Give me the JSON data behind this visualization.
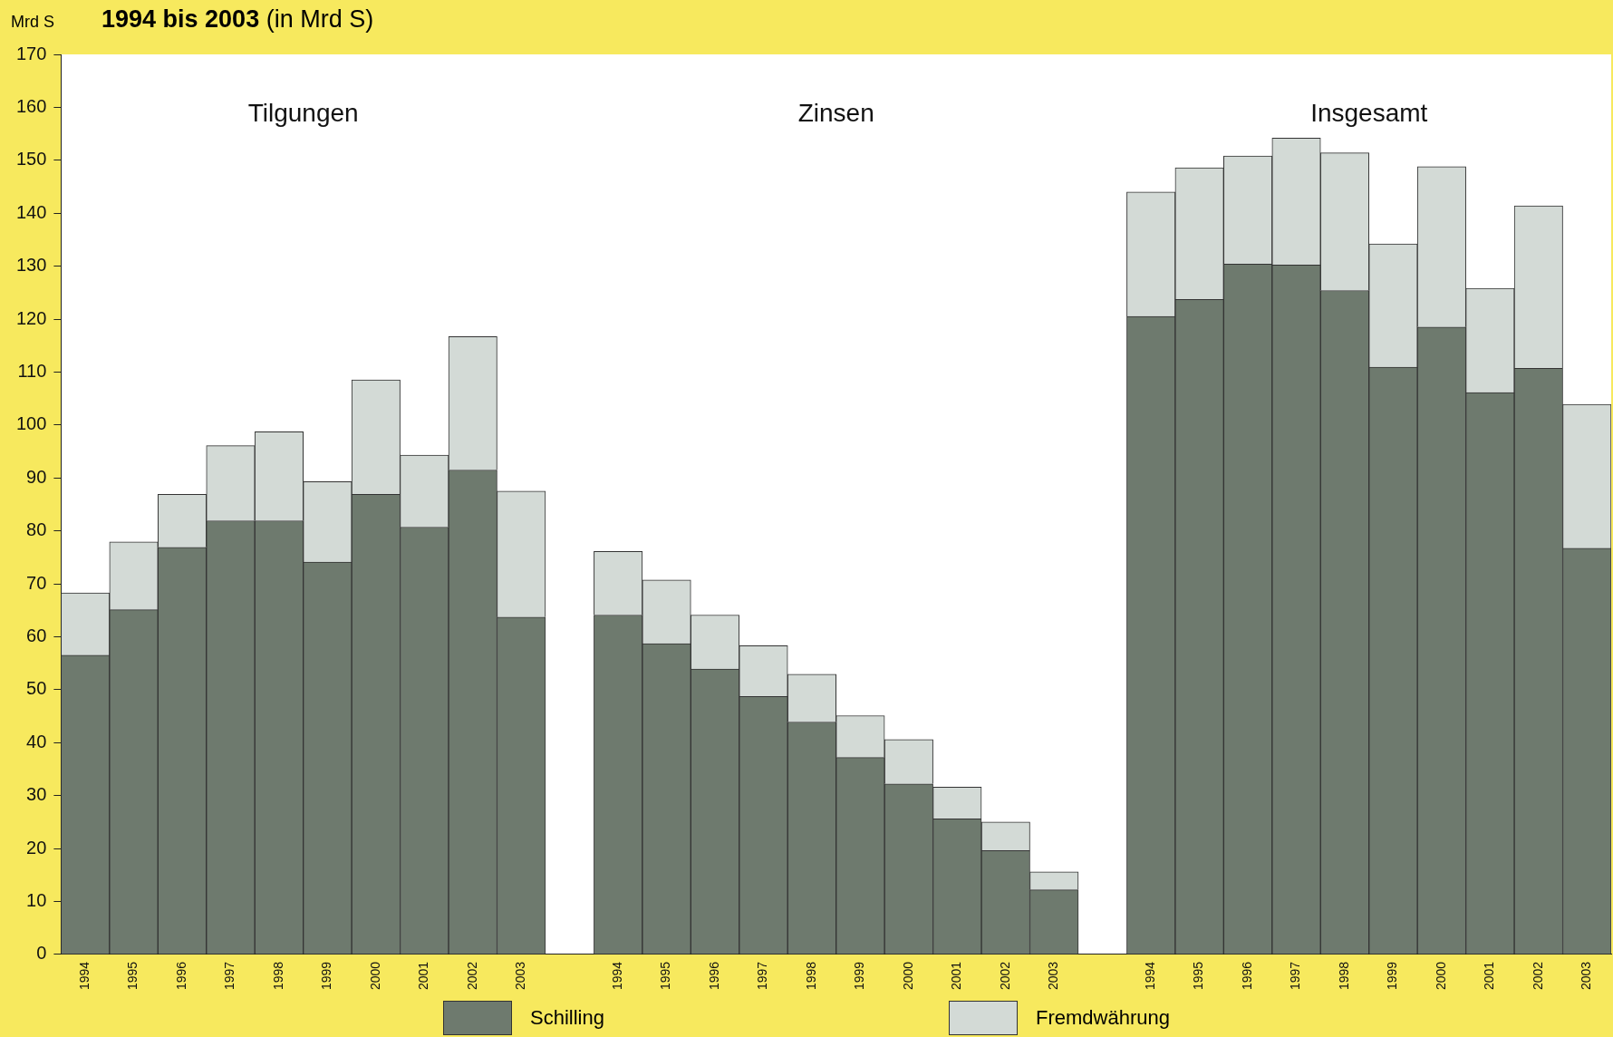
{
  "chart_data": {
    "type": "bar",
    "title": "1994 bis 2003",
    "subtitle": "(in Mrd S)",
    "ylabel": "Mrd S",
    "categories": [
      "1994",
      "1995",
      "1996",
      "1997",
      "1998",
      "1999",
      "2000",
      "2001",
      "2002",
      "2003",
      null,
      "1994",
      "1995",
      "1996",
      "1997",
      "1998",
      "1999",
      "2000",
      "2001",
      "2002",
      "2003",
      null,
      "1994",
      "1995",
      "1996",
      "1997",
      "1998",
      "1999",
      "2000",
      "2001",
      "2002",
      "2003"
    ],
    "series": [
      {
        "name": "Schilling",
        "color": "#6e7a6e",
        "values": [
          56.5,
          65.1,
          76.9,
          81.9,
          81.9,
          74.1,
          86.9,
          80.7,
          91.5,
          63.7,
          null,
          64.1,
          58.7,
          53.9,
          48.7,
          43.9,
          37.2,
          32.2,
          25.6,
          19.6,
          12.2,
          null,
          120.5,
          123.7,
          130.4,
          130.2,
          125.4,
          110.9,
          118.5,
          106.1,
          110.7,
          76.7
        ]
      },
      {
        "name": "Fremdwährung",
        "color": "#d3dad6",
        "values": [
          11.8,
          12.8,
          10.0,
          14.2,
          16.8,
          15.2,
          21.6,
          13.6,
          25.2,
          23.8,
          null,
          12.0,
          12.0,
          10.2,
          9.6,
          9.0,
          7.9,
          8.4,
          6.0,
          5.4,
          3.4,
          null,
          23.5,
          24.9,
          20.4,
          24.0,
          26.0,
          23.3,
          30.3,
          19.7,
          30.7,
          27.2
        ]
      }
    ],
    "stacked": true,
    "ylim": [
      0,
      170
    ],
    "yticks": [
      0,
      10,
      20,
      30,
      40,
      50,
      60,
      70,
      80,
      90,
      100,
      110,
      120,
      130,
      140,
      150,
      160,
      170
    ],
    "grid": false,
    "legend": "bottom",
    "annotations": [
      "Tilgungen",
      "Zinsen",
      "Insgesamt"
    ]
  }
}
